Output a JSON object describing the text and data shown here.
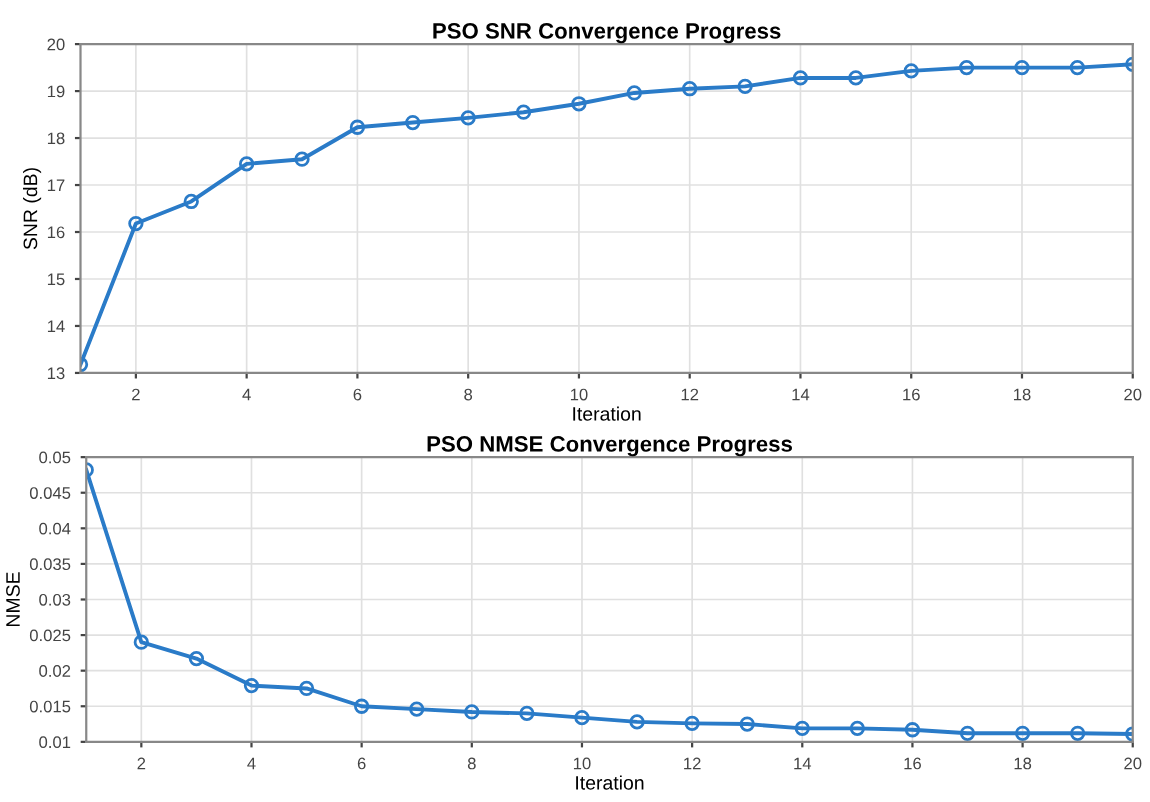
{
  "chart_data": [
    {
      "type": "line",
      "title": "PSO SNR Convergence Progress",
      "xlabel": "Iteration",
      "ylabel": "SNR (dB)",
      "x": [
        1,
        2,
        3,
        4,
        5,
        6,
        7,
        8,
        9,
        10,
        11,
        12,
        13,
        14,
        15,
        16,
        17,
        18,
        19,
        20
      ],
      "series": [
        {
          "color": "#2a7bc8",
          "values": [
            13.18,
            16.18,
            16.65,
            17.45,
            17.55,
            18.23,
            18.33,
            18.43,
            18.55,
            18.73,
            18.96,
            19.05,
            19.1,
            19.28,
            19.28,
            19.43,
            19.5,
            19.5,
            19.5,
            19.57
          ]
        }
      ],
      "xlim": [
        1,
        20
      ],
      "xticks": [
        2,
        4,
        6,
        8,
        10,
        12,
        14,
        16,
        18,
        20
      ],
      "ylim": [
        13,
        20
      ],
      "yticks": [
        13,
        14,
        15,
        16,
        17,
        18,
        19,
        20
      ],
      "grid": true,
      "marker": "circle",
      "line_style": "solid"
    },
    {
      "type": "line",
      "title": "PSO NMSE Convergence Progress",
      "xlabel": "Iteration",
      "ylabel": "NMSE",
      "x": [
        1,
        2,
        3,
        4,
        5,
        6,
        7,
        8,
        9,
        10,
        11,
        12,
        13,
        14,
        15,
        16,
        17,
        18,
        19,
        20
      ],
      "series": [
        {
          "color": "#2a7bc8",
          "values": [
            0.0482,
            0.024,
            0.0217,
            0.0179,
            0.0175,
            0.015,
            0.0146,
            0.0142,
            0.014,
            0.0134,
            0.0128,
            0.0126,
            0.0125,
            0.0119,
            0.0119,
            0.0117,
            0.0112,
            0.0112,
            0.0112,
            0.0111
          ]
        }
      ],
      "xlim": [
        1,
        20
      ],
      "xticks": [
        2,
        4,
        6,
        8,
        10,
        12,
        14,
        16,
        18,
        20
      ],
      "ylim": [
        0.01,
        0.05
      ],
      "yticks": [
        0.01,
        0.015,
        0.02,
        0.025,
        0.03,
        0.035,
        0.04,
        0.045,
        0.05
      ],
      "grid": true,
      "marker": "circle",
      "line_style": "solid"
    }
  ]
}
